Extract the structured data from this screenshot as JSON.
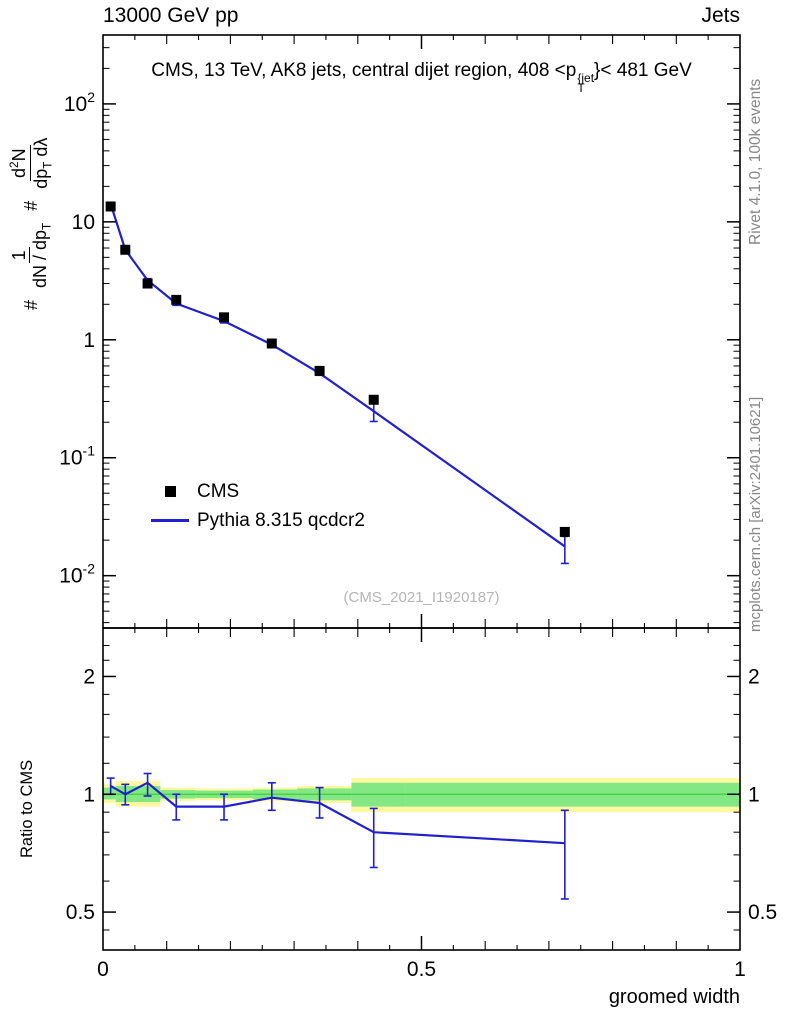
{
  "colors": {
    "line": "#2121cc",
    "data": "#000000",
    "band_yellow": "#fff8a0",
    "band_green": "#83e883",
    "band_line": "#3ecf3e",
    "note_gray": "#878787",
    "watermark_gray": "#b5b5b5"
  },
  "header": {
    "left": "13000 GeV pp",
    "right": "Jets"
  },
  "title": {
    "part1": "CMS, 13 TeV, AK8 jets, central dijet region, 408 <",
    "base": "p",
    "sup": "{jet",
    "sub": "T",
    "part2": "}< 481 GeV"
  },
  "ylabel": {
    "hash": "#",
    "num1": "1",
    "den1_a": "dN / dp",
    "den1_sub": "T",
    "num2_a": "d",
    "num2_sup": "2",
    "num2_b": "N",
    "den2_a": "dp",
    "den2_sub": "T",
    "den2_b": " dλ"
  },
  "notes": {
    "rivet": "Rivet 4.1.0, 100k events",
    "mcplots": "mcplots.cern.ch [arXiv:2401.10621]",
    "watermark": "(CMS_2021_I1920187)"
  },
  "legend": {
    "items": [
      {
        "label": "CMS",
        "marker": "square"
      },
      {
        "label": "Pythia 8.315 qcdcr2",
        "marker": "line"
      }
    ]
  },
  "axes": {
    "x": {
      "label": "groomed width",
      "ticks": [
        {
          "v": 0,
          "t": "0"
        },
        {
          "v": 0.5,
          "t": "0.5"
        },
        {
          "v": 1,
          "t": "1"
        }
      ]
    },
    "y_main": {
      "ticks": [
        {
          "v": 100,
          "base": "10",
          "exp": "2"
        },
        {
          "v": 10,
          "base": "10",
          "exp": ""
        },
        {
          "v": 1,
          "base": "1",
          "exp": ""
        },
        {
          "v": 0.1,
          "base": "10",
          "exp": "-1"
        },
        {
          "v": 0.01,
          "base": "10",
          "exp": "-2"
        }
      ]
    },
    "y_ratio": {
      "label": "Ratio to CMS",
      "ticks": [
        {
          "v": 0.5,
          "t": "0.5"
        },
        {
          "v": 1,
          "t": "1"
        },
        {
          "v": 2,
          "t": "2"
        }
      ]
    }
  },
  "chart_data": {
    "type": "line",
    "title": "CMS, 13 TeV, AK8 jets, central dijet region, 408 < pT{jet} < 481 GeV",
    "xlabel": "groomed width",
    "ylabel": "# 1/(dN/dpT) # d2N/(dpT dlambda)",
    "ratio_ylabel": "Ratio to CMS",
    "xscale": "linear",
    "yscale": "log",
    "xlim": [
      0,
      1
    ],
    "ylim_main": [
      0.0036,
      384
    ],
    "ratio_lim": [
      0.4,
      2.66
    ],
    "x": [
      0.012,
      0.035,
      0.07,
      0.115,
      0.19,
      0.265,
      0.34,
      0.425,
      0.725
    ],
    "series": [
      {
        "name": "CMS",
        "style": "points",
        "color": "#000000",
        "y": [
          13.5,
          5.8,
          3.0,
          2.18,
          1.55,
          0.93,
          0.545,
          0.31,
          0.0235
        ],
        "yerr": [
          0.5,
          0.2,
          0.12,
          0.08,
          0.06,
          0.035,
          0.022,
          0.015,
          0.002
        ]
      },
      {
        "name": "Pythia 8.315 qcdcr2",
        "style": "line",
        "color": "#2121cc",
        "y": [
          14.2,
          5.8,
          3.2,
          2.03,
          1.44,
          0.91,
          0.52,
          0.248,
          0.0177
        ],
        "yerr": [
          0.4,
          0.18,
          0.1,
          0.07,
          0.05,
          0.03,
          0.02,
          0.045,
          0.005
        ]
      }
    ],
    "ratio": {
      "y": [
        1.05,
        1.0,
        1.07,
        0.93,
        0.93,
        0.98,
        0.95,
        0.8,
        0.75
      ],
      "yerr_lo": [
        0.05,
        0.06,
        0.08,
        0.07,
        0.07,
        0.07,
        0.08,
        0.15,
        0.21
      ],
      "yerr_hi": [
        0.05,
        0.06,
        0.06,
        0.07,
        0.07,
        0.09,
        0.09,
        0.12,
        0.16
      ]
    },
    "ratio_bands": [
      {
        "x0": 0.0,
        "x1": 0.02,
        "ylo": 0.95,
        "yhi": 1.06,
        "glo": 0.97,
        "ghi": 1.04
      },
      {
        "x0": 0.02,
        "x1": 0.05,
        "ylo": 0.93,
        "yhi": 1.08,
        "glo": 0.955,
        "ghi": 1.05
      },
      {
        "x0": 0.05,
        "x1": 0.09,
        "ylo": 0.93,
        "yhi": 1.08,
        "glo": 0.955,
        "ghi": 1.05
      },
      {
        "x0": 0.09,
        "x1": 0.145,
        "ylo": 0.962,
        "yhi": 1.04,
        "glo": 0.975,
        "ghi": 1.025
      },
      {
        "x0": 0.145,
        "x1": 0.235,
        "ylo": 0.965,
        "yhi": 1.035,
        "glo": 0.978,
        "ghi": 1.022
      },
      {
        "x0": 0.235,
        "x1": 0.305,
        "ylo": 0.96,
        "yhi": 1.04,
        "glo": 0.972,
        "ghi": 1.028
      },
      {
        "x0": 0.305,
        "x1": 0.39,
        "ylo": 0.95,
        "yhi": 1.05,
        "glo": 0.965,
        "ghi": 1.035
      },
      {
        "x0": 0.39,
        "x1": 0.475,
        "ylo": 0.9,
        "yhi": 1.1,
        "glo": 0.93,
        "ghi": 1.07
      },
      {
        "x0": 0.475,
        "x1": 1.0,
        "ylo": 0.9,
        "yhi": 1.1,
        "glo": 0.93,
        "ghi": 1.07
      }
    ]
  }
}
